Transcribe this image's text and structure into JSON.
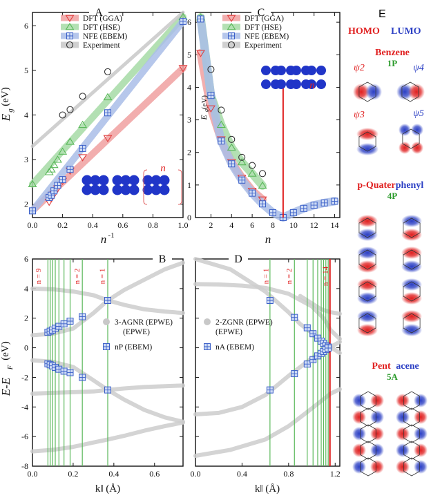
{
  "panel_e": {
    "label": "E",
    "homo": "HOMO",
    "lumo": "LUMO",
    "sections": [
      {
        "name_a": "Benzene",
        "name_b": "",
        "sub": "1P"
      },
      {
        "name_a": "p-Quater",
        "name_b": "phenyl",
        "sub": "4P"
      },
      {
        "name_a": "Pent",
        "name_b": "acene",
        "sub": "5A"
      }
    ],
    "psi": [
      "ψ2",
      "ψ3",
      "ψ4",
      "ψ5"
    ],
    "colors": {
      "homo": "#e02020",
      "lumo": "#2b3fc4",
      "sub": "#2a9a2a"
    }
  },
  "chart_data": [
    {
      "panel": "A",
      "type": "scatter",
      "xlabel": "n-1",
      "ylabel": "Eg (eV)",
      "xlim": [
        0,
        1.0
      ],
      "ylim": [
        1.7,
        6.3
      ],
      "xticks": [
        "0.0",
        "0.2",
        "0.4",
        "0.6",
        "0.8",
        "1.0"
      ],
      "yticks": [
        "2",
        "3",
        "4",
        "5",
        "6"
      ],
      "inset_label": "n",
      "series": [
        {
          "name": "DFT (GGA)",
          "marker": "triangle-down",
          "color": "#e04040",
          "band": "#f0a0a0",
          "x": [
            0.111,
            0.125,
            0.143,
            0.167,
            0.2,
            0.25,
            0.333,
            0.5,
            1.0
          ],
          "y": [
            2.05,
            2.13,
            2.22,
            2.35,
            2.52,
            2.75,
            3.05,
            3.48,
            5.05
          ]
        },
        {
          "name": "DFT (HSE)",
          "marker": "triangle-up",
          "color": "#5ab85a",
          "band": "#a6dba6",
          "x": [
            0,
            0.111,
            0.125,
            0.143,
            0.167,
            0.2,
            0.25,
            0.333,
            0.5,
            1.0
          ],
          "y": [
            2.45,
            2.72,
            2.78,
            2.88,
            3.0,
            3.18,
            3.4,
            3.78,
            4.4,
            6.2
          ]
        },
        {
          "name": "NFE (EBEM)",
          "marker": "boxplus",
          "color": "#3a5fc8",
          "band": "#a9bde8",
          "x": [
            0,
            0.111,
            0.125,
            0.143,
            0.167,
            0.2,
            0.25,
            0.333,
            0.5,
            1.0
          ],
          "y": [
            1.85,
            2.15,
            2.2,
            2.3,
            2.42,
            2.55,
            2.78,
            3.25,
            4.05,
            6.1
          ]
        },
        {
          "name": "Experiment",
          "marker": "circle",
          "color": "#333333",
          "band": "#c8c8c8",
          "x": [
            0.2,
            0.25,
            0.333,
            0.5
          ],
          "y": [
            4.0,
            4.12,
            4.42,
            4.97
          ]
        }
      ]
    },
    {
      "panel": "C",
      "type": "scatter",
      "xlabel": "n",
      "ylabel": "Eg (eV)",
      "xlim": [
        0.5,
        14.5
      ],
      "ylim": [
        0,
        6.3
      ],
      "xticks": [
        "2",
        "4",
        "6",
        "8",
        "10",
        "12",
        "14"
      ],
      "yticks": [
        "0",
        "1",
        "2",
        "3",
        "4",
        "5",
        "6"
      ],
      "inset_label": "n",
      "series": [
        {
          "name": "DFT (GGA)",
          "marker": "triangle-down",
          "color": "#e04040",
          "band": "#f0a0a0",
          "x": [
            1,
            2,
            3,
            4,
            5,
            6,
            7
          ],
          "y": [
            5.05,
            3.35,
            2.4,
            1.7,
            1.22,
            0.82,
            0.55
          ]
        },
        {
          "name": "DFT (HSE)",
          "marker": "triangle-up",
          "color": "#5ab85a",
          "band": "#a6dba6",
          "x": [
            1,
            2,
            3,
            4,
            5,
            6,
            7
          ],
          "y": [
            6.15,
            3.75,
            2.85,
            2.15,
            1.7,
            1.35,
            0.98
          ]
        },
        {
          "name": "NFE (EBEM)",
          "marker": "boxplus",
          "color": "#3a5fc8",
          "band": "#a9bde8",
          "x": [
            1,
            2,
            3,
            4,
            5,
            6,
            7,
            8,
            9,
            10,
            11,
            12,
            13,
            14
          ],
          "y": [
            6.1,
            3.75,
            2.35,
            1.65,
            1.15,
            0.75,
            0.42,
            0.15,
            0.0,
            0.15,
            0.28,
            0.38,
            0.45,
            0.5
          ]
        },
        {
          "name": "Experiment",
          "marker": "circle",
          "color": "#333333",
          "band": "#c8c8c8",
          "x": [
            2,
            3,
            4,
            5,
            6,
            7
          ],
          "y": [
            4.55,
            3.3,
            2.4,
            1.85,
            1.6,
            1.35
          ]
        }
      ],
      "vline": 9
    },
    {
      "panel": "B",
      "type": "line",
      "xlabel": "k‖ (Å)",
      "ylabel": "E-EF (eV)",
      "xlim": [
        0,
        0.74
      ],
      "ylim": [
        -8,
        6
      ],
      "xticks": [
        "0.0",
        "0.2",
        "0.4",
        "0.6"
      ],
      "yticks": [
        "-8",
        "-6",
        "-4",
        "-2",
        "0",
        "2",
        "4",
        "6"
      ],
      "legend": [
        "3-AGNR (EPWE)",
        "nP (EBEM)"
      ],
      "vlines_x": [
        0.076,
        0.087,
        0.098,
        0.112,
        0.13,
        0.155,
        0.185,
        0.245,
        0.37
      ],
      "vline_labels": [
        {
          "text": "n = 9",
          "x": 0.04
        },
        {
          "text": "n = 2",
          "x": 0.23
        },
        {
          "text": "n = 1",
          "x": 0.355
        }
      ],
      "points": [
        [
          0.076,
          1.05
        ],
        [
          0.087,
          1.12
        ],
        [
          0.098,
          1.2
        ],
        [
          0.112,
          1.32
        ],
        [
          0.13,
          1.45
        ],
        [
          0.155,
          1.62
        ],
        [
          0.185,
          1.8
        ],
        [
          0.245,
          2.1
        ],
        [
          0.37,
          3.2
        ],
        [
          0.076,
          -1.08
        ],
        [
          0.087,
          -1.15
        ],
        [
          0.098,
          -1.22
        ],
        [
          0.112,
          -1.33
        ],
        [
          0.13,
          -1.45
        ],
        [
          0.155,
          -1.58
        ],
        [
          0.185,
          -1.68
        ],
        [
          0.245,
          -2.0
        ],
        [
          0.37,
          -2.85
        ]
      ],
      "bands": [
        {
          "x": [
            0,
            0.1,
            0.2,
            0.3,
            0.37,
            0.45,
            0.55,
            0.65,
            0.74
          ],
          "y": [
            0.85,
            0.95,
            1.3,
            2.35,
            3.2,
            3.9,
            4.6,
            5.3,
            5.75
          ]
        },
        {
          "x": [
            0,
            0.1,
            0.2,
            0.3,
            0.37,
            0.45,
            0.55,
            0.65,
            0.74
          ],
          "y": [
            -0.85,
            -0.95,
            -1.3,
            -2.2,
            -2.85,
            -3.5,
            -4.2,
            -4.7,
            -5.0
          ]
        },
        {
          "x": [
            0,
            0.1,
            0.2,
            0.3,
            0.37,
            0.45,
            0.55,
            0.65,
            0.74
          ],
          "y": [
            4.0,
            3.95,
            3.8,
            3.55,
            3.2,
            2.9,
            2.6,
            2.45,
            2.35
          ]
        },
        {
          "x": [
            0,
            0.1,
            0.2,
            0.3,
            0.37,
            0.45,
            0.55,
            0.65,
            0.74
          ],
          "y": [
            -3.1,
            -3.05,
            -3.0,
            -2.95,
            -2.85,
            -2.75,
            -2.65,
            -2.6,
            -2.55
          ]
        },
        {
          "x": [
            0,
            0.1,
            0.2,
            0.3,
            0.37,
            0.45,
            0.55,
            0.65,
            0.74
          ],
          "y": [
            -7.0,
            -6.9,
            -6.7,
            -6.4,
            -6.2,
            -5.95,
            -5.6,
            -5.3,
            -5.05
          ]
        }
      ]
    },
    {
      "panel": "D",
      "type": "line",
      "xlabel": "k‖ (Å)",
      "ylabel": "",
      "xlim": [
        0,
        1.24
      ],
      "ylim": [
        -8,
        6
      ],
      "xticks": [
        "0.0",
        "0.4",
        "0.8",
        "1.2"
      ],
      "yticks": [],
      "legend": [
        "2-ZGNR (EPWE)",
        "nA (EBEM)"
      ],
      "vlines_x": [
        0.64,
        0.85,
        0.96,
        1.01,
        1.05,
        1.08,
        1.1,
        1.12,
        1.14
      ],
      "red_vline": 1.155,
      "vline_labels": [
        {
          "text": "n = 1",
          "x": 0.625
        },
        {
          "text": "n = 2",
          "x": 0.825
        },
        {
          "text": "n = 14",
          "x": 1.135
        }
      ],
      "points": [
        [
          0.64,
          3.2
        ],
        [
          0.85,
          2.05
        ],
        [
          0.96,
          1.35
        ],
        [
          1.01,
          0.95
        ],
        [
          1.05,
          0.65
        ],
        [
          1.08,
          0.45
        ],
        [
          1.1,
          0.3
        ],
        [
          1.12,
          0.15
        ],
        [
          1.14,
          0.05
        ],
        [
          0.64,
          -2.85
        ],
        [
          0.85,
          -1.75
        ],
        [
          0.96,
          -1.1
        ],
        [
          1.01,
          -0.8
        ],
        [
          1.05,
          -0.55
        ],
        [
          1.08,
          -0.38
        ],
        [
          1.1,
          -0.25
        ],
        [
          1.12,
          -0.12
        ],
        [
          1.14,
          -0.02
        ]
      ],
      "bands": [
        {
          "x": [
            0,
            0.2,
            0.4,
            0.6,
            0.8,
            1.0,
            1.1,
            1.16,
            1.24
          ],
          "y": [
            4.3,
            4.28,
            4.2,
            4.05,
            3.65,
            2.8,
            2.0,
            1.2,
            0.6
          ]
        },
        {
          "x": [
            0,
            0.2,
            0.4,
            0.6,
            0.8,
            1.0,
            1.1,
            1.16,
            1.24
          ],
          "y": [
            -4.5,
            -4.4,
            -4.0,
            -3.2,
            -1.9,
            -0.7,
            -0.25,
            0.05,
            0.4
          ]
        },
        {
          "x": [
            0,
            0.3,
            0.6,
            0.8,
            0.9,
            1.0,
            1.08,
            1.16,
            1.24
          ],
          "y": [
            6.0,
            5.3,
            3.8,
            2.4,
            1.6,
            1.0,
            0.4,
            0.05,
            -0.35
          ]
        },
        {
          "x": [
            0,
            0.3,
            0.6,
            0.8,
            0.9,
            1.0,
            1.08,
            1.16,
            1.24
          ],
          "y": [
            -7.3,
            -6.9,
            -6.2,
            -5.3,
            -4.7,
            -4.1,
            -3.6,
            -3.1,
            -2.8
          ]
        },
        {
          "x": [
            0.9,
            1.0,
            1.08,
            1.16,
            1.24
          ],
          "y": [
            3.5,
            3.0,
            2.6,
            2.4,
            2.3
          ]
        }
      ]
    }
  ]
}
